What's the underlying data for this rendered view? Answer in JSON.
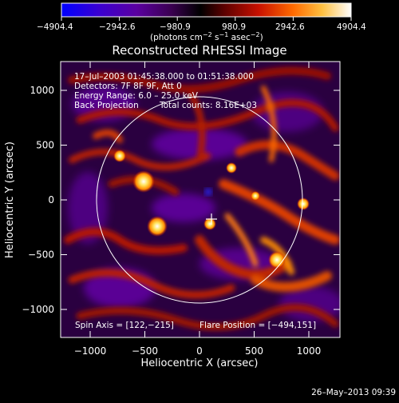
{
  "colorbar": {
    "tick_labels": [
      "−4904.4",
      "−2942.6",
      "−980.9",
      "980.9",
      "2942.6",
      "4904.4"
    ],
    "units": "(photons cm",
    "units_exp1": "−2",
    "units_mid": "s",
    "units_exp2": "−1",
    "units_end": "asec",
    "units_exp3": "−2",
    "units_close": ")",
    "colors": [
      "#0000ff",
      "#4b00b4",
      "#6b008f",
      "#000000",
      "#8b0000",
      "#e42000",
      "#ff8c00",
      "#ffe35a",
      "#ffffff"
    ]
  },
  "image": {
    "title": "Reconstructed RHESSI Image",
    "info_lines": [
      "17–Jul–2003 01:45:38.000 to 01:51:38.000",
      "Detectors: 7F 8F 9F, Att 0",
      "Energy Range: 6.0 – 25.0 keV"
    ],
    "method": "Back Projection",
    "total_counts": "Total counts: 8.16E+03",
    "spin_axis": "Spin Axis = [122,−215]",
    "flare_position": "Flare Position = [−494,151]",
    "frame_color": "#ffffff"
  },
  "axes": {
    "xlabel": "Heliocentric X (arcsec)",
    "ylabel": "Heliocentric Y (arcsec)",
    "x_ticks": [
      "−1000",
      "−500",
      "0",
      "500",
      "1000"
    ],
    "y_ticks": [
      "1000",
      "500",
      "0",
      "−500",
      "−1000"
    ]
  },
  "footer": {
    "timestamp": "26–May–2013 09:39"
  }
}
